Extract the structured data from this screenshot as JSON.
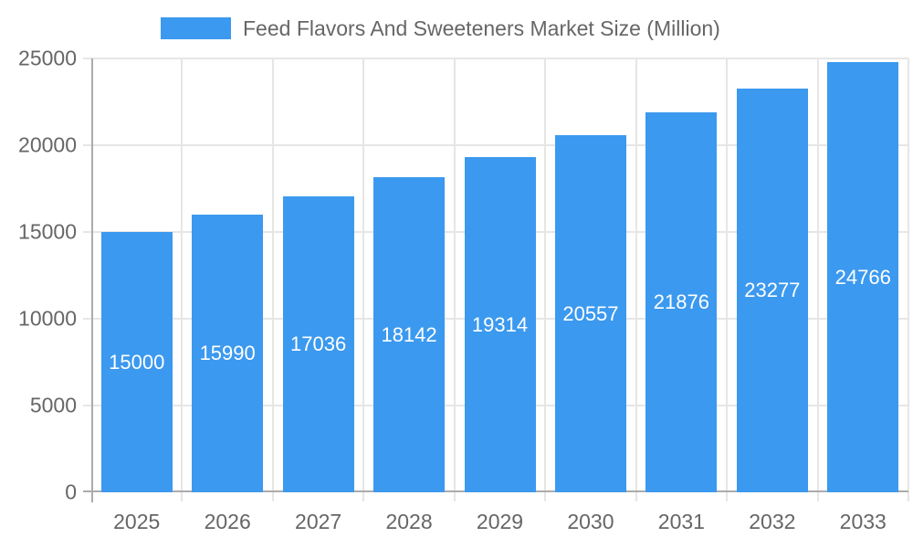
{
  "chart_data": {
    "type": "bar",
    "title": "Feed Flavors And Sweeteners Market Size (Million)",
    "categories": [
      "2025",
      "2026",
      "2027",
      "2028",
      "2029",
      "2030",
      "2031",
      "2032",
      "2033"
    ],
    "series": [
      {
        "name": "Feed Flavors And Sweeteners Market Size (Million)",
        "values": [
          15000,
          15990,
          17036,
          18142,
          19314,
          20557,
          21876,
          23277,
          24766
        ]
      }
    ],
    "value_labels": [
      "15000",
      "15990",
      "17036",
      "18142",
      "19314",
      "20557",
      "21876",
      "23277",
      "24766"
    ],
    "xlabel": "",
    "ylabel": "",
    "ylim": [
      0,
      25000
    ],
    "yticks": [
      0,
      5000,
      10000,
      15000,
      20000,
      25000
    ],
    "ytick_labels": [
      "0",
      "5000",
      "10000",
      "15000",
      "20000",
      "25000"
    ],
    "grid": true,
    "legend_position": "top"
  },
  "colors": {
    "bar_fill": "#3b99ef",
    "legend_swatch": "#3b99ef",
    "gridline": "#e6e6e6",
    "axis_line": "#ababab",
    "tick_text": "#666666",
    "bar_value_text": "#ffffff",
    "background": "#ffffff"
  }
}
